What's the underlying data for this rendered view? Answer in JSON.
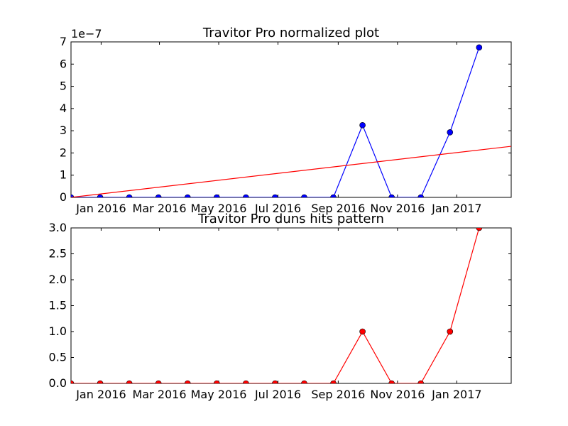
{
  "chart_data": [
    {
      "type": "line",
      "title": "Travitor Pro normalized plot",
      "scale_label": "1e−7",
      "xlim": [
        "2015-12-01",
        "2017-02-26"
      ],
      "ylim": [
        0,
        7e-07
      ],
      "yticks": [
        0,
        1e-07,
        2e-07,
        3e-07,
        4e-07,
        5e-07,
        6e-07,
        7e-07
      ],
      "ytick_labels": [
        "0",
        "1",
        "2",
        "3",
        "4",
        "5",
        "6",
        "7"
      ],
      "xticks": [
        "2016-01-01",
        "2016-03-01",
        "2016-05-01",
        "2016-07-01",
        "2016-09-01",
        "2016-11-01",
        "2017-01-01"
      ],
      "xtick_labels": [
        "Jan 2016",
        "Mar 2016",
        "May 2016",
        "Jul 2016",
        "Sep 2016",
        "Nov 2016",
        "Jan 2017"
      ],
      "series": [
        {
          "color": "#0000ff",
          "marker": "circle",
          "x": [
            "2015-12-01",
            "2015-12-31",
            "2016-01-30",
            "2016-02-29",
            "2016-03-30",
            "2016-04-29",
            "2016-05-29",
            "2016-06-28",
            "2016-07-28",
            "2016-08-27",
            "2016-09-26",
            "2016-10-26",
            "2016-11-25",
            "2016-12-25",
            "2017-01-24"
          ],
          "y": [
            0,
            0,
            0,
            0,
            0,
            0,
            0,
            0,
            0,
            0,
            3.25e-07,
            0,
            0,
            2.93e-07,
            6.75e-07
          ]
        },
        {
          "color": "#ff0000",
          "marker": "none",
          "x": [
            "2015-12-01",
            "2017-02-26"
          ],
          "y": [
            0,
            2.3e-07
          ]
        }
      ]
    },
    {
      "type": "line",
      "title": "Travitor Pro duns hits pattern",
      "xlim": [
        "2015-12-01",
        "2017-02-26"
      ],
      "ylim": [
        0,
        3.0
      ],
      "yticks": [
        0,
        0.5,
        1.0,
        1.5,
        2.0,
        2.5,
        3.0
      ],
      "ytick_labels": [
        "0.0",
        "0.5",
        "1.0",
        "1.5",
        "2.0",
        "2.5",
        "3.0"
      ],
      "xticks": [
        "2016-01-01",
        "2016-03-01",
        "2016-05-01",
        "2016-07-01",
        "2016-09-01",
        "2016-11-01",
        "2017-01-01"
      ],
      "xtick_labels": [
        "Jan 2016",
        "Mar 2016",
        "May 2016",
        "Jul 2016",
        "Sep 2016",
        "Nov 2016",
        "Jan 2017"
      ],
      "series": [
        {
          "color": "#ff0000",
          "marker": "circle",
          "x": [
            "2015-12-01",
            "2015-12-31",
            "2016-01-30",
            "2016-02-29",
            "2016-03-30",
            "2016-04-29",
            "2016-05-29",
            "2016-06-28",
            "2016-07-28",
            "2016-08-27",
            "2016-09-26",
            "2016-10-26",
            "2016-11-25",
            "2016-12-25",
            "2017-01-24"
          ],
          "y": [
            0,
            0,
            0,
            0,
            0,
            0,
            0,
            0,
            0,
            0,
            1,
            0,
            0,
            1,
            3
          ]
        }
      ]
    }
  ]
}
